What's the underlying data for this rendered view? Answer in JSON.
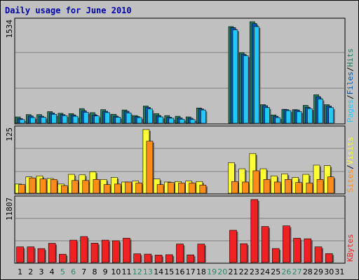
{
  "title": "Daily usage for June 2010",
  "colors": {
    "background": "#c0c0c0",
    "title": "#0000aa",
    "hits": "#1e7e5e",
    "files": "#0058b0",
    "pages": "#22c8f8",
    "visits": "#ffff33",
    "sites": "#ff8c1a",
    "kbytes": "#ee2222",
    "weekday_label": "#000000",
    "weekend_label": "#2a8a6a"
  },
  "chart_data": [
    {
      "type": "bar",
      "panel": "hits-files-pages",
      "ymax_label": "1534",
      "ymax": 1534,
      "series_label_parts": [
        "Pages",
        "/",
        "Files",
        "/",
        "Hits"
      ],
      "categories": [
        "1",
        "2",
        "3",
        "4",
        "5",
        "6",
        "7",
        "8",
        "9",
        "10",
        "11",
        "12",
        "13",
        "14",
        "15",
        "16",
        "17",
        "18",
        "19",
        "20",
        "21",
        "22",
        "23",
        "24",
        "25",
        "26",
        "27",
        "28",
        "29",
        "30",
        "31"
      ],
      "weekend_days": [
        "5",
        "6",
        "12",
        "13",
        "19",
        "20",
        "26",
        "27"
      ],
      "series": [
        {
          "name": "Hits",
          "values": [
            95,
            130,
            130,
            175,
            150,
            145,
            220,
            160,
            205,
            135,
            200,
            115,
            260,
            145,
            115,
            105,
            95,
            230,
            0,
            0,
            1460,
            1065,
            1534,
            280,
            125,
            210,
            205,
            270,
            430,
            280,
            0
          ]
        },
        {
          "name": "Files",
          "values": [
            70,
            110,
            105,
            155,
            130,
            125,
            185,
            125,
            180,
            105,
            180,
            100,
            240,
            115,
            90,
            80,
            75,
            215,
            0,
            0,
            1445,
            1040,
            1505,
            265,
            105,
            205,
            200,
            240,
            400,
            260,
            0
          ]
        },
        {
          "name": "Pages",
          "values": [
            55,
            85,
            90,
            135,
            115,
            105,
            165,
            110,
            160,
            90,
            155,
            85,
            215,
            95,
            75,
            60,
            55,
            200,
            0,
            0,
            1410,
            1020,
            1460,
            235,
            85,
            190,
            175,
            220,
            365,
            235,
            0
          ]
        }
      ]
    },
    {
      "type": "bar",
      "panel": "visits-sites",
      "ymax_label": "125",
      "ymax": 125,
      "series_label_parts": [
        "Sites",
        "/",
        "Visits"
      ],
      "categories": [
        "1",
        "2",
        "3",
        "4",
        "5",
        "6",
        "7",
        "8",
        "9",
        "10",
        "11",
        "12",
        "13",
        "14",
        "15",
        "16",
        "17",
        "18",
        "19",
        "20",
        "21",
        "22",
        "23",
        "24",
        "25",
        "26",
        "27",
        "28",
        "29",
        "30",
        "31"
      ],
      "series": [
        {
          "name": "Visits",
          "values": [
            18,
            32,
            34,
            29,
            18,
            37,
            36,
            42,
            27,
            31,
            22,
            24,
            125,
            28,
            22,
            23,
            24,
            23,
            0,
            0,
            60,
            48,
            78,
            48,
            34,
            38,
            31,
            37,
            55,
            54,
            0
          ]
        },
        {
          "name": "Sites",
          "values": [
            17,
            30,
            28,
            27,
            15,
            25,
            25,
            27,
            17,
            18,
            22,
            20,
            102,
            17,
            21,
            20,
            20,
            16,
            0,
            0,
            23,
            22,
            44,
            27,
            22,
            27,
            21,
            20,
            27,
            32,
            0
          ]
        }
      ]
    },
    {
      "type": "bar",
      "panel": "kbytes",
      "ymax_label": "11807",
      "ymax": 11807,
      "series_label_parts": [
        "KBytes"
      ],
      "categories": [
        "1",
        "2",
        "3",
        "4",
        "5",
        "6",
        "7",
        "8",
        "9",
        "10",
        "11",
        "12",
        "13",
        "14",
        "15",
        "16",
        "17",
        "18",
        "19",
        "20",
        "21",
        "22",
        "23",
        "24",
        "25",
        "26",
        "27",
        "28",
        "29",
        "30",
        "31"
      ],
      "series": [
        {
          "name": "KBytes",
          "values": [
            2930,
            2930,
            2610,
            3600,
            1550,
            4190,
            4860,
            3630,
            4190,
            4080,
            4560,
            1630,
            1570,
            1390,
            1460,
            3470,
            1430,
            3460,
            0,
            0,
            6040,
            3530,
            11807,
            6750,
            2620,
            6870,
            4560,
            4450,
            2930,
            1670,
            0
          ]
        }
      ]
    }
  ]
}
